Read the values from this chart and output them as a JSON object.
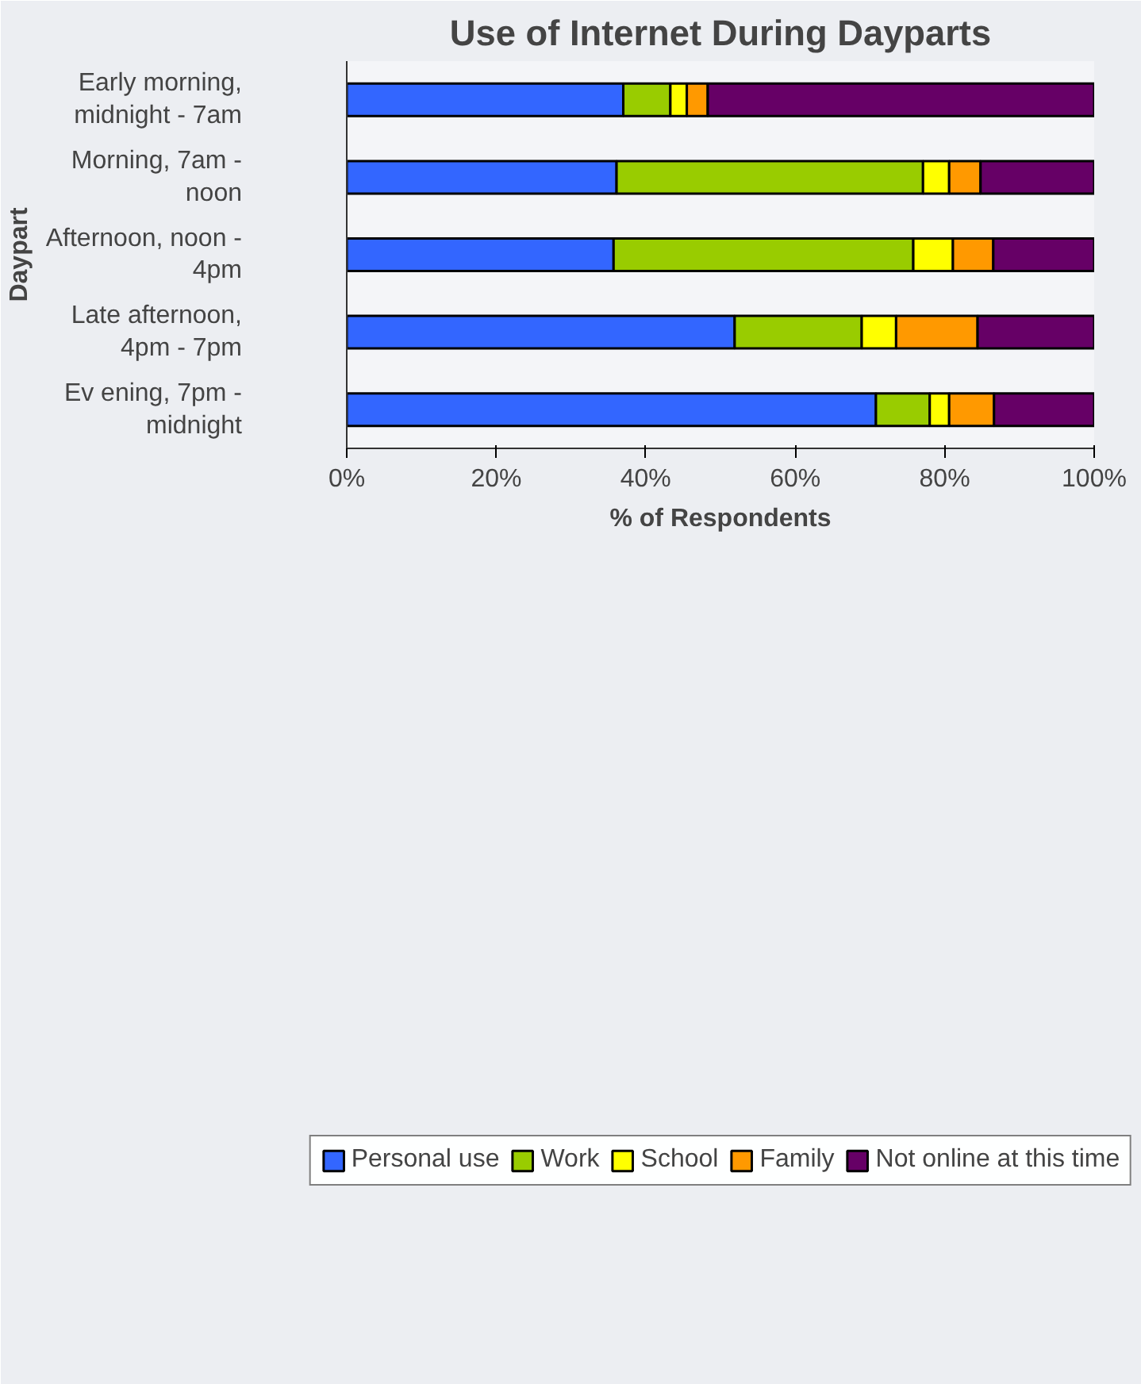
{
  "chart_data": {
    "type": "bar",
    "orientation": "horizontal",
    "stacked": true,
    "title": "Use of Internet During Dayparts",
    "xlabel": "% of Respondents",
    "ylabel": "Daypart",
    "categories": [
      "Early morning,\nmidnight - 7am",
      "Morning, 7am -\nnoon",
      "Afternoon, noon -\n4pm",
      "Late afternoon,\n4pm - 7pm",
      "Ev ening, 7pm -\nmidnight"
    ],
    "series": [
      {
        "name": "Personal use",
        "color": "#3366ff",
        "values": [
          37,
          36.1,
          35.7,
          51.9,
          70.8
        ]
      },
      {
        "name": "Work",
        "color": "#99cc00",
        "values": [
          6.3,
          41,
          40.1,
          17,
          7.2
        ]
      },
      {
        "name": "School",
        "color": "#ffff00",
        "values": [
          2.2,
          3.5,
          5.3,
          4.6,
          2.6
        ]
      },
      {
        "name": "Family",
        "color": "#ff9900",
        "values": [
          2.8,
          4.2,
          5.4,
          10.9,
          6
        ]
      },
      {
        "name": "Not online at this time",
        "color": "#660066",
        "values": [
          51.7,
          15.2,
          13.5,
          15.6,
          13.4
        ]
      }
    ],
    "xlim": [
      0,
      100
    ],
    "xticks": [
      {
        "value": 0,
        "label": "0%"
      },
      {
        "value": 20,
        "label": "20%"
      },
      {
        "value": 40,
        "label": "40%"
      },
      {
        "value": 60,
        "label": "60%"
      },
      {
        "value": 80,
        "label": "80%"
      },
      {
        "value": 100,
        "label": "100%"
      }
    ],
    "grid": false,
    "legend": "bottom"
  }
}
